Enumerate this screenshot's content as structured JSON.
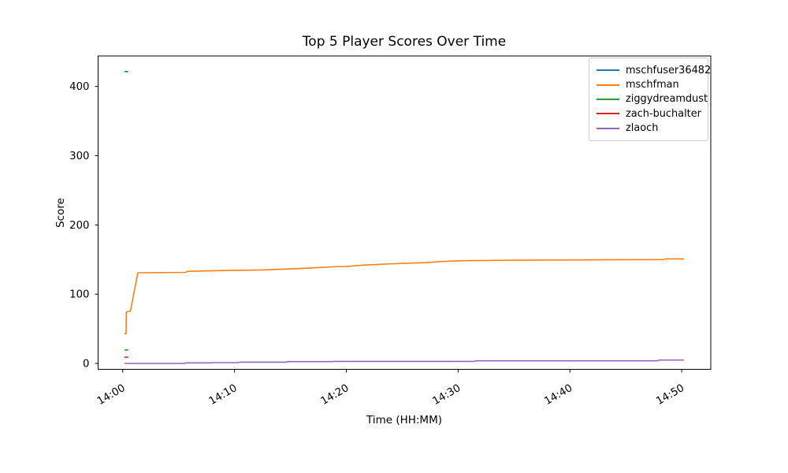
{
  "figure": {
    "title": "Top 5 Player Scores Over Time",
    "xlabel": "Time (HH:MM)",
    "ylabel": "Score"
  },
  "chart_data": {
    "type": "line",
    "title": "Top 5 Player Scores Over Time",
    "xlabel": "Time (HH:MM)",
    "ylabel": "Score",
    "grid": false,
    "legend_position": "upper right",
    "x_unit": "minutes after 14:00",
    "x_ticks": [
      {
        "minute": 0,
        "label": "14:00"
      },
      {
        "minute": 10,
        "label": "14:10"
      },
      {
        "minute": 20,
        "label": "14:20"
      },
      {
        "minute": 30,
        "label": "14:30"
      },
      {
        "minute": 40,
        "label": "14:40"
      },
      {
        "minute": 50,
        "label": "14:50"
      }
    ],
    "y_ticks": [
      0,
      100,
      200,
      300,
      400
    ],
    "xlim_minutes": [
      -2.2,
      52.6
    ],
    "ylim": [
      -8.5,
      444
    ],
    "series": [
      {
        "name": "mschfuser36482",
        "color": "#1f77b4",
        "points": [
          [
            0.15,
            421.5
          ],
          [
            0.5,
            421.5
          ]
        ]
      },
      {
        "name": "mschfman",
        "color": "#ff7f0e",
        "points": [
          [
            0.15,
            43
          ],
          [
            0.3,
            43
          ],
          [
            0.32,
            74
          ],
          [
            0.7,
            76
          ],
          [
            1.35,
            131
          ],
          [
            5.6,
            131.5
          ],
          [
            5.8,
            133
          ],
          [
            8.5,
            134
          ],
          [
            12.5,
            135
          ],
          [
            15,
            136.5
          ],
          [
            16.5,
            137.5
          ],
          [
            18.7,
            139.5
          ],
          [
            20,
            140
          ],
          [
            21.5,
            142
          ],
          [
            24.3,
            144
          ],
          [
            27,
            145.5
          ],
          [
            28.8,
            147.5
          ],
          [
            31,
            148.5
          ],
          [
            35,
            149
          ],
          [
            44.5,
            149.8
          ],
          [
            48.4,
            150
          ],
          [
            48.6,
            151
          ],
          [
            50.2,
            151
          ]
        ]
      },
      {
        "name": "ziggydreamdust",
        "color": "#2ca02c",
        "points": [
          [
            0.15,
            19.5
          ],
          [
            0.5,
            19.5
          ]
        ]
      },
      {
        "name": "zach-buchalter",
        "color": "#d62728",
        "points": [
          [
            0.15,
            9
          ],
          [
            0.5,
            9
          ]
        ]
      },
      {
        "name": "zlaoch",
        "color": "#9467bd",
        "points": [
          [
            0.15,
            0
          ],
          [
            5.5,
            0
          ],
          [
            5.7,
            0.8
          ],
          [
            7.9,
            0.8
          ],
          [
            8.1,
            1.2
          ],
          [
            10.3,
            1.2
          ],
          [
            10.5,
            1.9
          ],
          [
            14.6,
            1.9
          ],
          [
            14.8,
            2.6
          ],
          [
            18.7,
            2.6
          ],
          [
            18.9,
            3.0
          ],
          [
            31.4,
            3.0
          ],
          [
            31.6,
            3.8
          ],
          [
            47.8,
            3.8
          ],
          [
            48.0,
            4.9
          ],
          [
            50.2,
            4.9
          ]
        ]
      }
    ]
  }
}
